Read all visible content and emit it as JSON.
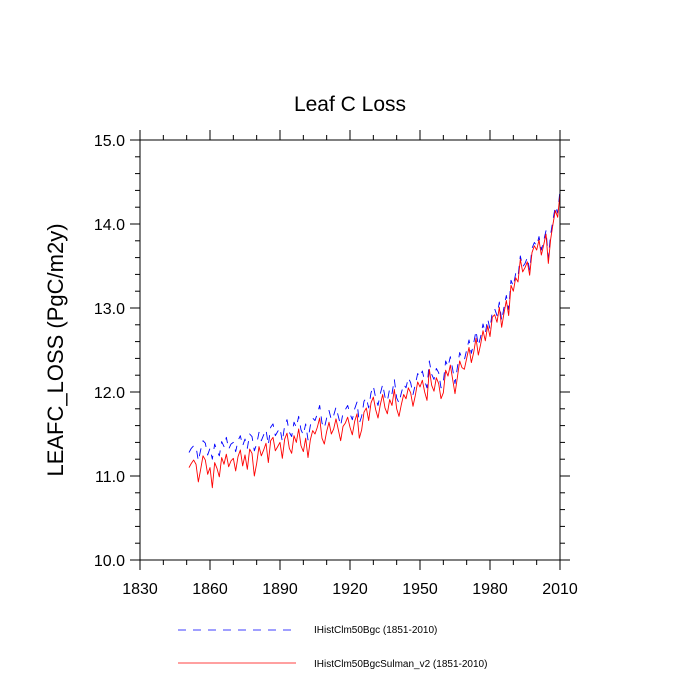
{
  "chart_data": {
    "type": "line",
    "title": "Leaf C Loss",
    "xlabel": "",
    "ylabel": "LEAFC_LOSS  (PgC/m2y)",
    "xlim": [
      1830,
      2010
    ],
    "ylim": [
      10.0,
      15.0
    ],
    "x_ticks": [
      1830,
      1860,
      1890,
      1920,
      1950,
      1980,
      2010
    ],
    "x_tick_labels": [
      "1830",
      "1860",
      "1890",
      "1920",
      "1950",
      "1980",
      "2010"
    ],
    "y_ticks": [
      10.0,
      11.0,
      12.0,
      13.0,
      14.0,
      15.0
    ],
    "y_tick_labels": [
      "10.0",
      "11.0",
      "12.0",
      "13.0",
      "14.0",
      "15.0"
    ],
    "grid": false,
    "legend_position": "bottom",
    "series": [
      {
        "name": "IHistClm50Bgc (1851-2010)",
        "color": "#0000ff",
        "style": "dashed",
        "x": [
          1851,
          1852,
          1853,
          1854,
          1855,
          1856,
          1857,
          1858,
          1859,
          1860,
          1861,
          1862,
          1863,
          1864,
          1865,
          1866,
          1867,
          1868,
          1869,
          1870,
          1871,
          1872,
          1873,
          1874,
          1875,
          1876,
          1877,
          1878,
          1879,
          1880,
          1881,
          1882,
          1883,
          1884,
          1885,
          1886,
          1887,
          1888,
          1889,
          1890,
          1891,
          1892,
          1893,
          1894,
          1895,
          1896,
          1897,
          1898,
          1899,
          1900,
          1901,
          1902,
          1903,
          1904,
          1905,
          1906,
          1907,
          1908,
          1909,
          1910,
          1911,
          1912,
          1913,
          1914,
          1915,
          1916,
          1917,
          1918,
          1919,
          1920,
          1921,
          1922,
          1923,
          1924,
          1925,
          1926,
          1927,
          1928,
          1929,
          1930,
          1931,
          1932,
          1933,
          1934,
          1935,
          1936,
          1937,
          1938,
          1939,
          1940,
          1941,
          1942,
          1943,
          1944,
          1945,
          1946,
          1947,
          1948,
          1949,
          1950,
          1951,
          1952,
          1953,
          1954,
          1955,
          1956,
          1957,
          1958,
          1959,
          1960,
          1961,
          1962,
          1963,
          1964,
          1965,
          1966,
          1967,
          1968,
          1969,
          1970,
          1971,
          1972,
          1973,
          1974,
          1975,
          1976,
          1977,
          1978,
          1979,
          1980,
          1981,
          1982,
          1983,
          1984,
          1985,
          1986,
          1987,
          1988,
          1989,
          1990,
          1991,
          1992,
          1993,
          1994,
          1995,
          1996,
          1997,
          1998,
          1999,
          2000,
          2001,
          2002,
          2003,
          2004,
          2005,
          2006,
          2007,
          2008,
          2009,
          2010
        ],
        "y": [
          11.28,
          11.33,
          11.36,
          11.35,
          11.18,
          11.31,
          11.42,
          11.39,
          11.25,
          11.33,
          11.2,
          11.38,
          11.3,
          11.24,
          11.41,
          11.35,
          11.46,
          11.32,
          11.38,
          11.4,
          11.29,
          11.42,
          11.48,
          11.36,
          11.44,
          11.33,
          11.5,
          11.47,
          11.3,
          11.38,
          11.52,
          11.42,
          11.49,
          11.55,
          11.37,
          11.58,
          11.62,
          11.48,
          11.53,
          11.57,
          11.41,
          11.6,
          11.67,
          11.52,
          11.47,
          11.64,
          11.58,
          11.71,
          11.55,
          11.49,
          11.62,
          11.43,
          11.6,
          11.69,
          11.66,
          11.74,
          11.84,
          11.63,
          11.57,
          11.69,
          11.78,
          11.67,
          11.72,
          11.82,
          11.71,
          11.6,
          11.75,
          11.79,
          11.84,
          11.74,
          11.67,
          11.8,
          11.88,
          11.63,
          11.71,
          11.89,
          11.93,
          11.81,
          11.99,
          12.07,
          11.93,
          11.84,
          11.98,
          12.09,
          11.94,
          11.89,
          12.04,
          11.98,
          12.15,
          11.93,
          11.87,
          11.99,
          12.09,
          12.05,
          12.17,
          12.11,
          11.97,
          12.09,
          12.22,
          12.18,
          12.25,
          12.13,
          12.05,
          12.37,
          12.21,
          12.15,
          12.28,
          12.23,
          12.05,
          12.12,
          12.37,
          12.3,
          12.42,
          12.27,
          12.1,
          12.29,
          12.47,
          12.4,
          12.38,
          12.5,
          12.62,
          12.46,
          12.58,
          12.73,
          12.55,
          12.66,
          12.81,
          12.7,
          12.87,
          12.75,
          12.96,
          12.99,
          12.91,
          13.07,
          12.85,
          13.01,
          13.15,
          12.98,
          13.33,
          13.26,
          13.41,
          13.37,
          13.62,
          13.49,
          13.53,
          13.6,
          13.45,
          13.71,
          13.78,
          13.74,
          13.85,
          13.69,
          13.8,
          13.92,
          13.6,
          13.88,
          14.05,
          14.21,
          14.13,
          14.4
        ]
      },
      {
        "name": "IHistClm50BgcSulman_v2 (1851-2010)",
        "color": "#ff0000",
        "style": "solid",
        "x": [
          1851,
          1852,
          1853,
          1854,
          1855,
          1856,
          1857,
          1858,
          1859,
          1860,
          1861,
          1862,
          1863,
          1864,
          1865,
          1866,
          1867,
          1868,
          1869,
          1870,
          1871,
          1872,
          1873,
          1874,
          1875,
          1876,
          1877,
          1878,
          1879,
          1880,
          1881,
          1882,
          1883,
          1884,
          1885,
          1886,
          1887,
          1888,
          1889,
          1890,
          1891,
          1892,
          1893,
          1894,
          1895,
          1896,
          1897,
          1898,
          1899,
          1900,
          1901,
          1902,
          1903,
          1904,
          1905,
          1906,
          1907,
          1908,
          1909,
          1910,
          1911,
          1912,
          1913,
          1914,
          1915,
          1916,
          1917,
          1918,
          1919,
          1920,
          1921,
          1922,
          1923,
          1924,
          1925,
          1926,
          1927,
          1928,
          1929,
          1930,
          1931,
          1932,
          1933,
          1934,
          1935,
          1936,
          1937,
          1938,
          1939,
          1940,
          1941,
          1942,
          1943,
          1944,
          1945,
          1946,
          1947,
          1948,
          1949,
          1950,
          1951,
          1952,
          1953,
          1954,
          1955,
          1956,
          1957,
          1958,
          1959,
          1960,
          1961,
          1962,
          1963,
          1964,
          1965,
          1966,
          1967,
          1968,
          1969,
          1970,
          1971,
          1972,
          1973,
          1974,
          1975,
          1976,
          1977,
          1978,
          1979,
          1980,
          1981,
          1982,
          1983,
          1984,
          1985,
          1986,
          1987,
          1988,
          1989,
          1990,
          1991,
          1992,
          1993,
          1994,
          1995,
          1996,
          1997,
          1998,
          1999,
          2000,
          2001,
          2002,
          2003,
          2004,
          2005,
          2006,
          2007,
          2008,
          2009,
          2010
        ],
        "y": [
          11.1,
          11.15,
          11.19,
          11.14,
          10.93,
          11.08,
          11.24,
          11.19,
          11.02,
          11.1,
          10.86,
          11.16,
          11.09,
          10.99,
          11.22,
          11.14,
          11.26,
          11.11,
          11.18,
          11.21,
          11.06,
          11.23,
          11.31,
          11.12,
          11.25,
          11.08,
          11.32,
          11.27,
          11.0,
          11.15,
          11.35,
          11.24,
          11.31,
          11.39,
          11.16,
          11.42,
          11.46,
          11.3,
          11.35,
          11.4,
          11.21,
          11.44,
          11.51,
          11.33,
          11.27,
          11.48,
          11.4,
          11.56,
          11.36,
          11.29,
          11.45,
          11.22,
          11.43,
          11.54,
          11.5,
          11.58,
          11.69,
          11.45,
          11.38,
          11.53,
          11.64,
          11.5,
          11.56,
          11.68,
          11.55,
          11.42,
          11.59,
          11.63,
          11.7,
          11.58,
          11.49,
          11.65,
          11.74,
          11.45,
          11.55,
          11.76,
          11.81,
          11.66,
          11.87,
          11.94,
          11.79,
          11.69,
          11.85,
          11.97,
          11.81,
          11.74,
          11.91,
          11.84,
          12.03,
          11.8,
          11.71,
          11.85,
          11.97,
          11.92,
          12.05,
          11.99,
          11.83,
          11.96,
          12.12,
          12.06,
          12.14,
          12.0,
          11.9,
          12.27,
          12.08,
          12.01,
          12.17,
          12.1,
          11.92,
          11.99,
          12.26,
          12.19,
          12.32,
          12.15,
          11.98,
          12.17,
          12.37,
          12.29,
          12.27,
          12.4,
          12.53,
          12.35,
          12.47,
          12.64,
          12.44,
          12.57,
          12.73,
          12.61,
          12.79,
          12.66,
          12.89,
          12.92,
          12.83,
          13.01,
          12.77,
          12.94,
          13.09,
          12.91,
          13.27,
          13.2,
          13.36,
          13.31,
          13.58,
          13.43,
          13.48,
          13.55,
          13.39,
          13.66,
          13.74,
          13.69,
          13.81,
          13.63,
          13.75,
          13.88,
          13.53,
          13.82,
          14.0,
          14.16,
          14.08,
          14.36
        ]
      }
    ]
  }
}
